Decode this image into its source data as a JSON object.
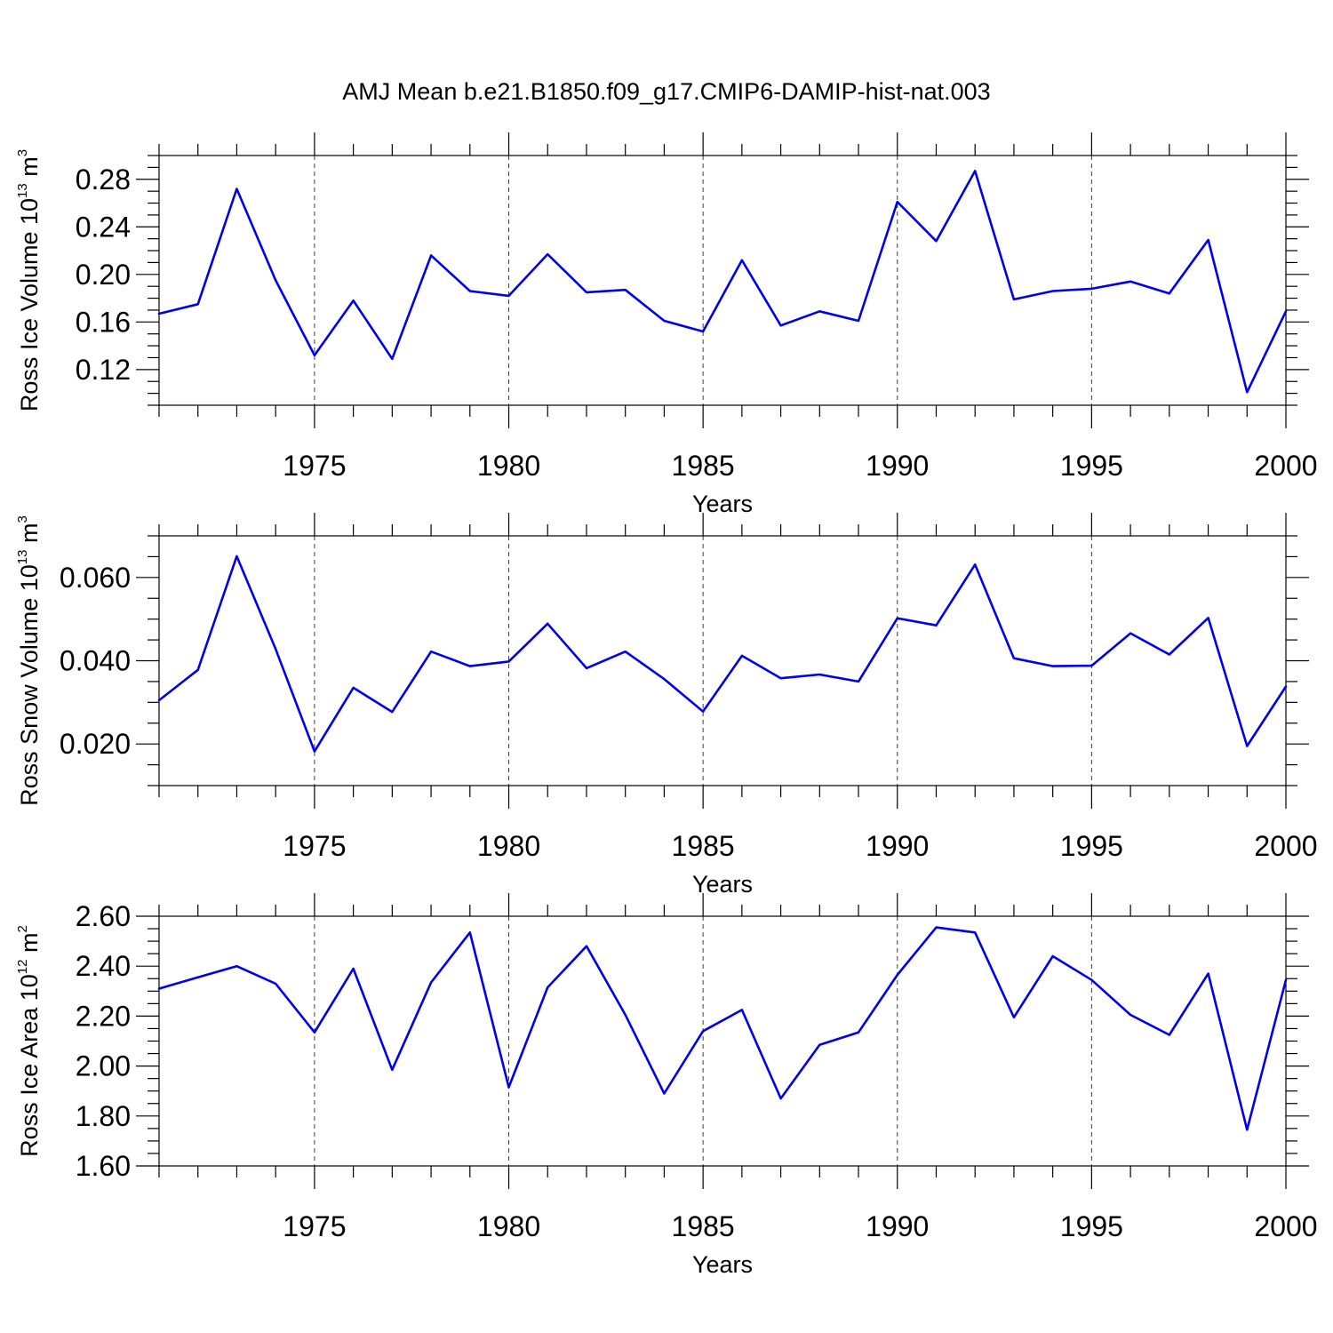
{
  "title": "AMJ Mean b.e21.B1850.f09_g17.CMIP6-DAMIP-hist-nat.003",
  "line_color": "#0000ee",
  "chart_data": [
    {
      "type": "line",
      "name": "ice-volume",
      "ylabel": {
        "text": "Ross Ice Volume 10",
        "exp": "13",
        "unit": " m",
        "unit_exp": "3"
      },
      "xlabel": "Years",
      "xlim": [
        1971,
        2000
      ],
      "ylim": [
        0.09,
        0.3
      ],
      "yticks": [
        0.12,
        0.16,
        0.2,
        0.24,
        0.28
      ],
      "ytick_labels": [
        "0.12",
        "0.16",
        "0.20",
        "0.24",
        "0.28"
      ],
      "yminor_step": 0.01,
      "xticks": [
        1975,
        1980,
        1985,
        1990,
        1995,
        2000
      ],
      "x": [
        1971,
        1972,
        1973,
        1974,
        1975,
        1976,
        1977,
        1978,
        1979,
        1980,
        1981,
        1982,
        1983,
        1984,
        1985,
        1986,
        1987,
        1988,
        1989,
        1990,
        1991,
        1992,
        1993,
        1994,
        1995,
        1996,
        1997,
        1998,
        1999,
        2000
      ],
      "values": [
        0.167,
        0.175,
        0.272,
        0.195,
        0.132,
        0.178,
        0.129,
        0.216,
        0.186,
        0.182,
        0.217,
        0.185,
        0.187,
        0.161,
        0.152,
        0.212,
        0.157,
        0.169,
        0.161,
        0.261,
        0.228,
        0.287,
        0.179,
        0.186,
        0.188,
        0.194,
        0.184,
        0.229,
        0.101,
        0.169
      ]
    },
    {
      "type": "line",
      "name": "snow-volume",
      "ylabel": {
        "text": "Ross Snow Volume 10",
        "exp": "13",
        "unit": " m",
        "unit_exp": "3"
      },
      "xlabel": "Years",
      "xlim": [
        1971,
        2000
      ],
      "ylim": [
        0.01,
        0.07
      ],
      "yticks": [
        0.02,
        0.04,
        0.06
      ],
      "ytick_labels": [
        "0.020",
        "0.040",
        "0.060"
      ],
      "yminor_step": 0.005,
      "xticks": [
        1975,
        1980,
        1985,
        1990,
        1995,
        2000
      ],
      "x": [
        1971,
        1972,
        1973,
        1974,
        1975,
        1976,
        1977,
        1978,
        1979,
        1980,
        1981,
        1982,
        1983,
        1984,
        1985,
        1986,
        1987,
        1988,
        1989,
        1990,
        1991,
        1992,
        1993,
        1994,
        1995,
        1996,
        1997,
        1998,
        1999,
        2000
      ],
      "values": [
        0.0305,
        0.0378,
        0.0651,
        0.0428,
        0.0182,
        0.0335,
        0.0277,
        0.0422,
        0.0387,
        0.0398,
        0.0489,
        0.0382,
        0.0422,
        0.0356,
        0.0278,
        0.0412,
        0.0358,
        0.0367,
        0.035,
        0.0502,
        0.0485,
        0.0631,
        0.0406,
        0.0387,
        0.0388,
        0.0466,
        0.0415,
        0.0503,
        0.0195,
        0.0338
      ]
    },
    {
      "type": "line",
      "name": "ice-area",
      "ylabel": {
        "text": "Ross Ice Area 10",
        "exp": "12",
        "unit": " m",
        "unit_exp": "2"
      },
      "xlabel": "Years",
      "xlim": [
        1971,
        2000
      ],
      "ylim": [
        1.6,
        2.6
      ],
      "yticks": [
        1.6,
        1.8,
        2.0,
        2.2,
        2.4,
        2.6
      ],
      "ytick_labels": [
        "1.60",
        "1.80",
        "2.00",
        "2.20",
        "2.40",
        "2.60"
      ],
      "yminor_step": 0.05,
      "xticks": [
        1975,
        1980,
        1985,
        1990,
        1995,
        2000
      ],
      "x": [
        1971,
        1972,
        1973,
        1974,
        1975,
        1976,
        1977,
        1978,
        1979,
        1980,
        1981,
        1982,
        1983,
        1984,
        1985,
        1986,
        1987,
        1988,
        1989,
        1990,
        1991,
        1992,
        1993,
        1994,
        1995,
        1996,
        1997,
        1998,
        1999,
        2000
      ],
      "values": [
        2.31,
        2.355,
        2.4,
        2.33,
        2.135,
        2.39,
        1.985,
        2.335,
        2.535,
        1.915,
        2.315,
        2.48,
        2.205,
        1.89,
        2.14,
        2.225,
        1.87,
        2.085,
        2.135,
        2.365,
        2.555,
        2.535,
        2.195,
        2.44,
        2.345,
        2.205,
        2.125,
        2.37,
        1.745,
        2.345
      ]
    }
  ]
}
